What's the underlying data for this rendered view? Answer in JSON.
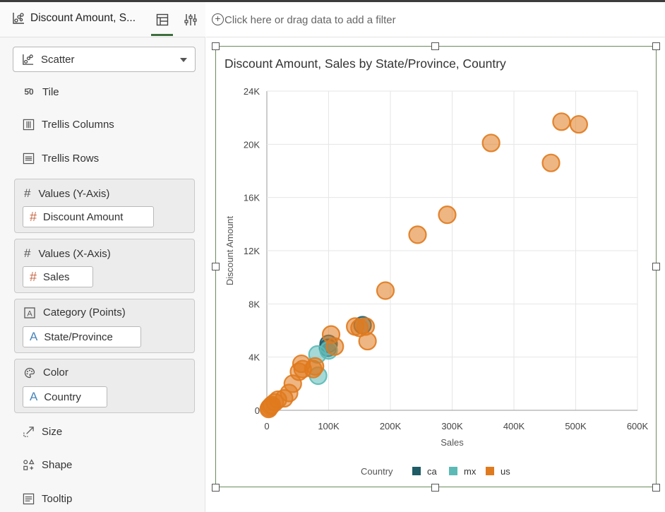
{
  "panel": {
    "title": "Discount Amount, S...",
    "chart_type": "Scatter",
    "props": [
      "Tile",
      "Trellis Columns",
      "Trellis Rows"
    ],
    "wells": [
      {
        "label": "Values (Y-Axis)",
        "item": "Discount Amount"
      },
      {
        "label": "Values (X-Axis)",
        "item": "Sales"
      },
      {
        "label": "Category (Points)",
        "item": "State/Province"
      },
      {
        "label": "Color",
        "item": "Country"
      }
    ],
    "bottom_props": [
      "Size",
      "Shape",
      "Tooltip"
    ]
  },
  "filter": {
    "placeholder": "Click here or drag data to add a filter"
  },
  "chart_data": {
    "type": "scatter",
    "title": "Discount Amount, Sales by State/Province, Country",
    "xlabel": "Sales",
    "ylabel": "Discount Amount",
    "xlim": [
      0,
      600000
    ],
    "ylim": [
      0,
      24000
    ],
    "x_ticks": [
      "0",
      "100K",
      "200K",
      "300K",
      "400K",
      "500K",
      "600K"
    ],
    "y_ticks": [
      "0",
      "4K",
      "8K",
      "12K",
      "16K",
      "20K",
      "24K"
    ],
    "legend_title": "Country",
    "grid": true,
    "legend_position": "bottom",
    "colors": {
      "ca": "#1f5c66",
      "mx": "#5bbab6",
      "us": "#e07a1e"
    },
    "series": [
      {
        "name": "ca",
        "points": [
          [
            100000,
            5000
          ],
          [
            99000,
            4700
          ],
          [
            155000,
            6400
          ]
        ]
      },
      {
        "name": "mx",
        "points": [
          [
            82000,
            4200
          ],
          [
            83000,
            2600
          ],
          [
            100000,
            4500
          ]
        ]
      },
      {
        "name": "us",
        "points": [
          [
            505000,
            21500
          ],
          [
            477000,
            21700
          ],
          [
            363000,
            20100
          ],
          [
            460000,
            18600
          ],
          [
            292000,
            14700
          ],
          [
            244000,
            13200
          ],
          [
            192000,
            9000
          ],
          [
            104000,
            5700
          ],
          [
            110000,
            4800
          ],
          [
            143000,
            6300
          ],
          [
            150000,
            6200
          ],
          [
            160000,
            6300
          ],
          [
            163000,
            5200
          ],
          [
            56000,
            3500
          ],
          [
            58000,
            3100
          ],
          [
            52000,
            2900
          ],
          [
            75000,
            3100
          ],
          [
            78000,
            3300
          ],
          [
            42000,
            2000
          ],
          [
            36000,
            1300
          ],
          [
            28000,
            900
          ],
          [
            18000,
            800
          ],
          [
            13000,
            600
          ],
          [
            8000,
            400
          ],
          [
            4000,
            200
          ],
          [
            3000,
            100
          ],
          [
            6000,
            300
          ]
        ]
      }
    ]
  }
}
